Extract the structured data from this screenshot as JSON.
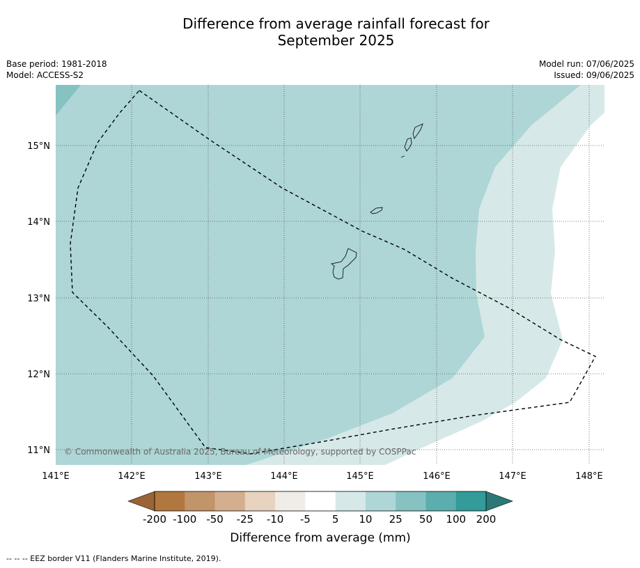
{
  "title_line1": "Difference from average rainfall forecast for",
  "title_line2": "September 2025",
  "meta": {
    "base_period": "Base period: 1981-2018",
    "model": "Model: ACCESS-S2",
    "model_run": "Model run: 07/06/2025",
    "issued": "Issued: 09/06/2025"
  },
  "map": {
    "lat_labels": [
      "15°N",
      "14°N",
      "13°N",
      "12°N",
      "11°N"
    ],
    "lon_labels": [
      "141°E",
      "142°E",
      "143°E",
      "144°E",
      "145°E",
      "146°E",
      "147°E",
      "148°E"
    ],
    "copyright": "© Commonwealth of Australia 2025, Bureau of Meteorology, supported by COSPPac",
    "region_color_25_50": "#85c2c1",
    "region_color_10_25": "#aed6d6",
    "region_color_5_10": "#d6e9e8"
  },
  "colorbar": {
    "ticks": [
      "-200",
      "-100",
      "-50",
      "-25",
      "-10",
      "-5",
      "5",
      "10",
      "25",
      "50",
      "100",
      "200"
    ],
    "colors": [
      "#9a6434",
      "#b0783e",
      "#c2946a",
      "#d4af8f",
      "#e8d2c0",
      "#f0ece7",
      "#ffffff",
      "#d6e9e8",
      "#aed6d6",
      "#85c2c1",
      "#5cadad",
      "#339b99",
      "#2a7978"
    ],
    "title": "Difference from average (mm)"
  },
  "footer": "--  --  -- EEZ border V11 (Flanders Marine Institute, 2019)."
}
